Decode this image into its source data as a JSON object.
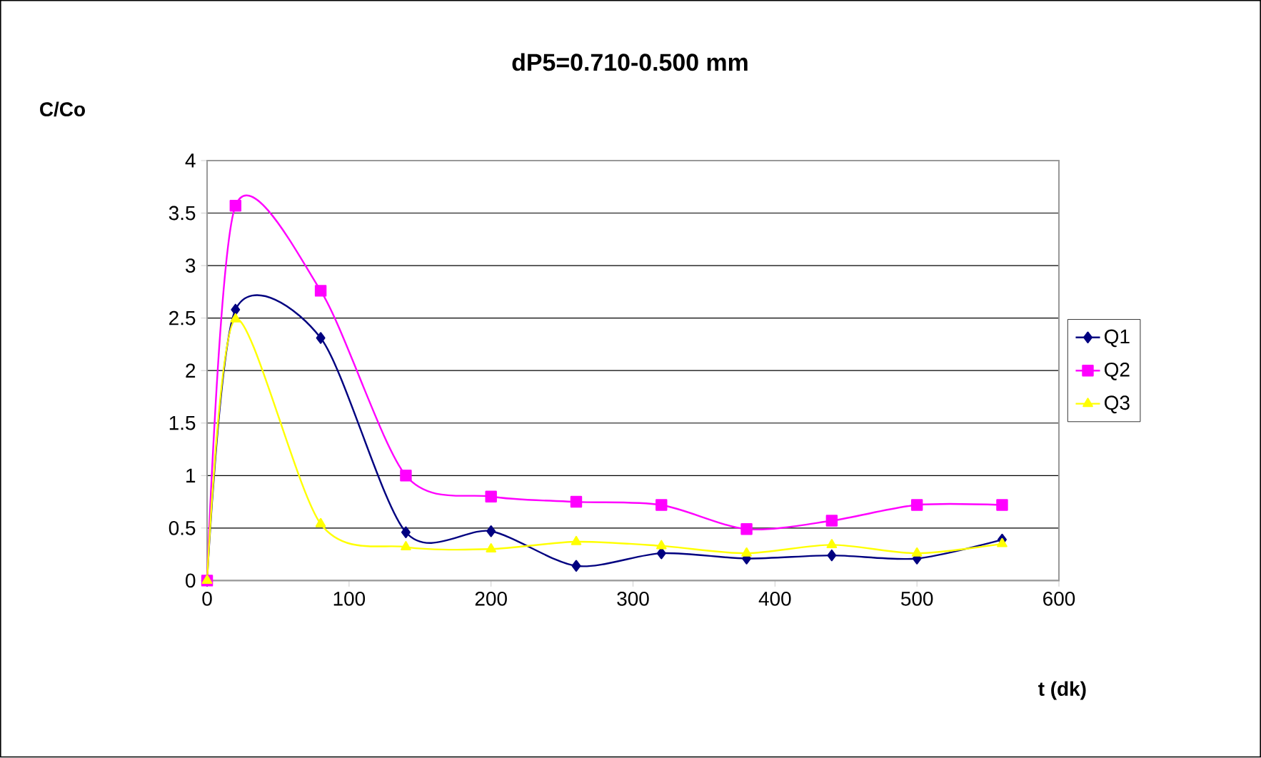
{
  "chart_data": {
    "type": "line",
    "title": "dP5=0.710-0.500 mm",
    "xlabel": "t (dk)",
    "ylabel": "C/Co",
    "x": [
      0,
      20,
      80,
      140,
      200,
      260,
      320,
      380,
      440,
      500,
      560
    ],
    "series": [
      {
        "name": "Q1",
        "color": "#000080",
        "marker": "diamond",
        "values": [
          0,
          2.58,
          2.31,
          0.46,
          0.47,
          0.14,
          0.26,
          0.21,
          0.24,
          0.21,
          0.39
        ]
      },
      {
        "name": "Q2",
        "color": "#ff00ff",
        "marker": "square",
        "values": [
          0,
          3.57,
          2.76,
          1.0,
          0.8,
          0.75,
          0.72,
          0.49,
          0.57,
          0.72,
          0.72
        ]
      },
      {
        "name": "Q3",
        "color": "#ffff00",
        "marker": "triangle",
        "values": [
          0,
          2.49,
          0.54,
          0.32,
          0.3,
          0.37,
          0.33,
          0.26,
          0.34,
          0.26,
          0.35
        ]
      }
    ],
    "xlim": [
      0,
      600
    ],
    "xticks": [
      0,
      100,
      200,
      300,
      400,
      500,
      600
    ],
    "ylim": [
      0,
      4
    ],
    "yticks": [
      0,
      0.5,
      1,
      1.5,
      2,
      2.5,
      3,
      3.5,
      4
    ],
    "grid": "y",
    "legend": "right",
    "line_style": "solid"
  }
}
